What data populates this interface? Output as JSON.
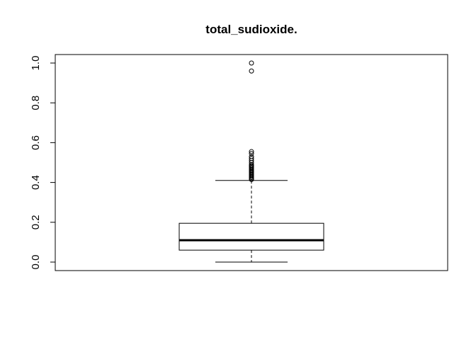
{
  "chart_data": {
    "type": "boxplot",
    "title": "total_sudioxide.",
    "xlabel": "",
    "ylabel": "",
    "ylim": [
      -0.04,
      1.04
    ],
    "yticks": [
      0.0,
      0.2,
      0.4,
      0.6,
      0.8,
      1.0
    ],
    "ytick_labels": [
      "0.0",
      "0.2",
      "0.4",
      "0.6",
      "0.8",
      "1.0"
    ],
    "box": {
      "min": 0.0,
      "q1": 0.06,
      "median": 0.11,
      "q3": 0.195,
      "max": 0.41
    },
    "outliers": [
      0.415,
      0.42,
      0.425,
      0.43,
      0.435,
      0.44,
      0.445,
      0.45,
      0.455,
      0.46,
      0.465,
      0.47,
      0.475,
      0.48,
      0.485,
      0.49,
      0.5,
      0.51,
      0.52,
      0.53,
      0.545,
      0.555,
      0.96,
      1.0
    ],
    "colors": {
      "stroke": "#000000",
      "background": "#ffffff"
    }
  }
}
